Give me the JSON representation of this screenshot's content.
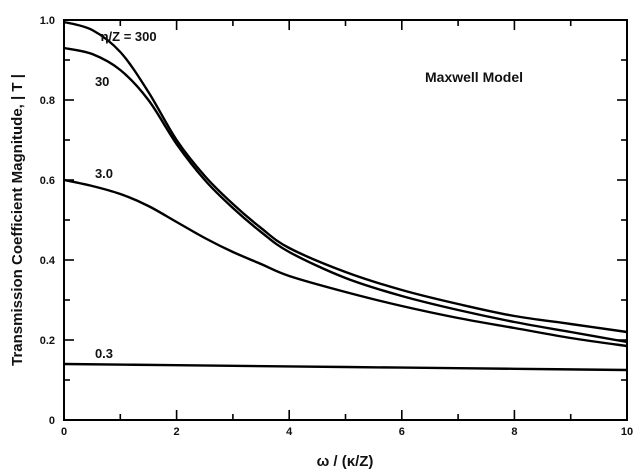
{
  "chart_data": {
    "type": "line",
    "xlabel": "ω / (κ/Z)",
    "ylabel": "Transmission Coefficient Magnitude, | T |",
    "annotation": "Maxwell Model",
    "xlim": [
      0,
      10
    ],
    "ylim": [
      0,
      1.0
    ],
    "x_ticks": [
      0,
      2,
      4,
      6,
      8,
      10
    ],
    "y_ticks": [
      0,
      0.2,
      0.4,
      0.6,
      0.8,
      1.0
    ],
    "x_tick_labels": [
      "0",
      "2",
      "4",
      "6",
      "8",
      "10"
    ],
    "y_tick_labels": [
      "0",
      "0.2",
      "0.4",
      "0.6",
      "0.8",
      "1.0"
    ],
    "grid": false,
    "series": [
      {
        "name": "η/Z = 300",
        "x": [
          0,
          0.5,
          1,
          1.5,
          2,
          2.5,
          3,
          3.5,
          4,
          5,
          6,
          7,
          8,
          9,
          10
        ],
        "y": [
          0.995,
          0.975,
          0.92,
          0.82,
          0.7,
          0.61,
          0.54,
          0.48,
          0.43,
          0.37,
          0.325,
          0.29,
          0.26,
          0.24,
          0.22
        ]
      },
      {
        "name": "30",
        "x": [
          0,
          0.5,
          1,
          1.5,
          2,
          2.5,
          3,
          3.5,
          4,
          5,
          6,
          7,
          8,
          9,
          10
        ],
        "y": [
          0.93,
          0.915,
          0.875,
          0.8,
          0.69,
          0.6,
          0.53,
          0.47,
          0.42,
          0.355,
          0.31,
          0.275,
          0.245,
          0.22,
          0.195
        ]
      },
      {
        "name": "3.0",
        "x": [
          0,
          0.5,
          1,
          1.5,
          2,
          2.5,
          3,
          3.5,
          4,
          5,
          6,
          7,
          8,
          9,
          10
        ],
        "y": [
          0.6,
          0.585,
          0.565,
          0.535,
          0.495,
          0.455,
          0.42,
          0.39,
          0.36,
          0.32,
          0.285,
          0.255,
          0.23,
          0.205,
          0.185
        ]
      },
      {
        "name": "0.3",
        "x": [
          0,
          2,
          4,
          6,
          8,
          10
        ],
        "y": [
          0.14,
          0.137,
          0.134,
          0.131,
          0.128,
          0.125
        ]
      }
    ]
  }
}
